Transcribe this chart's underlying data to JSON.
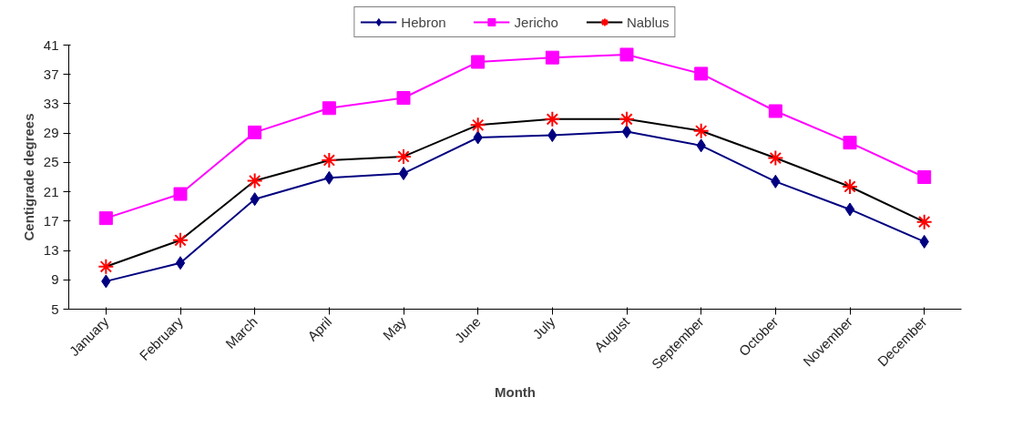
{
  "chart_data": {
    "type": "line",
    "xlabel": "Month",
    "ylabel": "Centigrade degrees",
    "categories": [
      "January",
      "February",
      "March",
      "April",
      "May",
      "June",
      "July",
      "August",
      "September",
      "October",
      "November",
      "December"
    ],
    "series": [
      {
        "name": "Hebron",
        "color": "#000080",
        "marker": "diamond",
        "values": [
          8.8,
          11.3,
          20.0,
          22.9,
          23.5,
          28.4,
          28.7,
          29.2,
          27.3,
          22.4,
          18.6,
          14.2
        ]
      },
      {
        "name": "Jericho",
        "color": "#ff00ff",
        "marker": "square",
        "values": [
          17.4,
          20.7,
          29.1,
          32.4,
          33.8,
          38.7,
          39.3,
          39.7,
          37.1,
          32.0,
          27.7,
          23.0
        ]
      },
      {
        "name": "Nablus",
        "color": "#000000",
        "colors": [
          "#ff0000",
          "#ff0000",
          "#ff0000",
          "#ff0000",
          "#ff0000",
          "#ff0000",
          "#ff0000",
          "#ff0000",
          "#ff0000",
          "#ff0000",
          "#ff0000",
          "#ff0000"
        ],
        "marker": "cross",
        "values": [
          10.8,
          14.4,
          22.5,
          25.3,
          25.8,
          30.1,
          30.9,
          30.9,
          29.3,
          25.6,
          21.7,
          16.9
        ]
      }
    ],
    "ylim": [
      5,
      41
    ],
    "yticks": [
      5,
      9,
      13,
      17,
      21,
      25,
      29,
      33,
      37,
      41
    ],
    "grid": false,
    "legend": "top",
    "line_style": "solid"
  }
}
